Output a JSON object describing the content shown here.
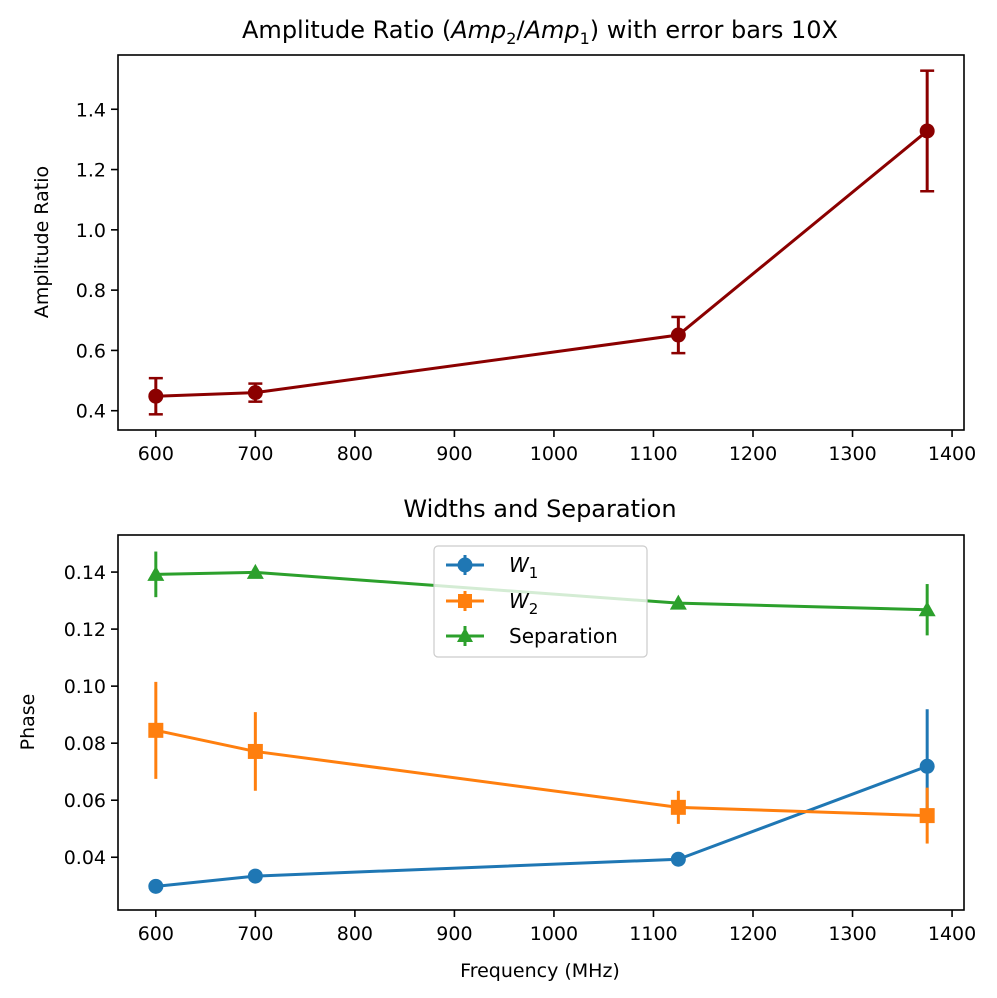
{
  "chart_data": [
    {
      "type": "line",
      "title_parts": [
        "Amplitude Ratio (",
        "Amp",
        "2",
        "/",
        "Amp",
        "1",
        ") with error bars 10X"
      ],
      "xlabel": "",
      "ylabel": "Amplitude Ratio",
      "xlim": [
        562,
        1412
      ],
      "ylim": [
        0.336,
        1.58
      ],
      "xticks": [
        600,
        700,
        800,
        900,
        1000,
        1100,
        1200,
        1300,
        1400
      ],
      "yticks": [
        0.4,
        0.6,
        0.8,
        1.0,
        1.2,
        1.4
      ],
      "ytick_labels": [
        "0.4",
        "0.6",
        "0.8",
        "1.0",
        "1.2",
        "1.4"
      ],
      "series": [
        {
          "name": "Amp2/Amp1",
          "color": "#8b0000",
          "marker": "circle",
          "x": [
            600,
            700,
            1125,
            1375
          ],
          "y": [
            0.448,
            0.46,
            0.651,
            1.328
          ],
          "err": [
            0.06,
            0.03,
            0.06,
            0.2
          ]
        }
      ]
    },
    {
      "type": "line",
      "title": "Widths and Separation",
      "xlabel": "Frequency (MHz)",
      "ylabel": "Phase",
      "xlim": [
        562,
        1412
      ],
      "ylim": [
        0.0215,
        0.153
      ],
      "xticks": [
        600,
        700,
        800,
        900,
        1000,
        1100,
        1200,
        1300,
        1400
      ],
      "yticks": [
        0.04,
        0.06,
        0.08,
        0.1,
        0.12,
        0.14
      ],
      "ytick_labels": [
        "0.04",
        "0.06",
        "0.08",
        "0.10",
        "0.12",
        "0.14"
      ],
      "legend_position": "upper-center",
      "series": [
        {
          "name": "W",
          "subscript": "1",
          "color": "#1f77b4",
          "marker": "circle",
          "x": [
            600,
            700,
            1125,
            1375
          ],
          "y": [
            0.0298,
            0.0334,
            0.0393,
            0.0719
          ],
          "err": [
            0.001,
            0.001,
            0.001,
            0.02
          ]
        },
        {
          "name": "W",
          "subscript": "2",
          "color": "#ff7f0e",
          "marker": "square",
          "x": [
            600,
            700,
            1125,
            1375
          ],
          "y": [
            0.0845,
            0.0771,
            0.0575,
            0.0546
          ],
          "err": [
            0.017,
            0.0138,
            0.0058,
            0.0098
          ]
        },
        {
          "name": "Separation",
          "subscript": "",
          "color": "#2ca02c",
          "marker": "triangle",
          "x": [
            600,
            700,
            1125,
            1375
          ],
          "y": [
            0.1392,
            0.1399,
            0.1291,
            0.1268
          ],
          "err": [
            0.008,
            0.001,
            0.001,
            0.009
          ]
        }
      ]
    }
  ]
}
